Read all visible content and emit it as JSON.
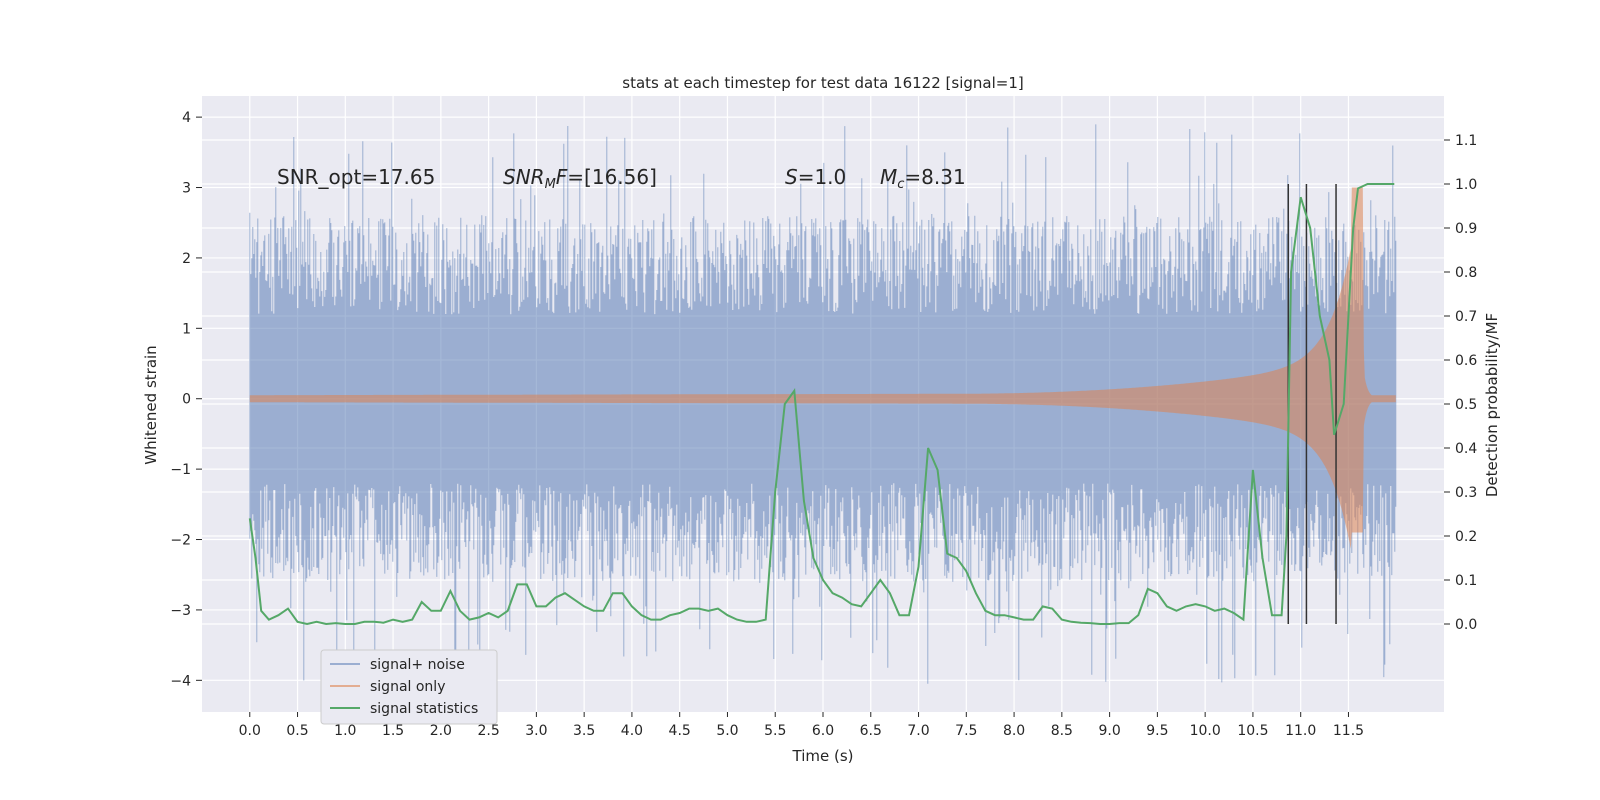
{
  "chart_data": {
    "type": "line",
    "title": "stats at each timestep for test data 16122 [signal=1]",
    "xlabel": "Time (s)",
    "ylabel_left": "Whitened strain",
    "ylabel_right": "Detection probability/MF",
    "xlim": [
      -0.5,
      12.5
    ],
    "ylim_left": [
      -4.45,
      4.3
    ],
    "ylim_right": [
      -0.2,
      1.2
    ],
    "xticks": [
      "0.0",
      "0.5",
      "1.0",
      "1.5",
      "2.0",
      "2.5",
      "3.0",
      "3.5",
      "4.0",
      "4.5",
      "5.0",
      "5.5",
      "6.0",
      "6.5",
      "7.0",
      "7.5",
      "8.0",
      "8.5",
      "9.0",
      "9.5",
      "10.0",
      "10.5",
      "11.0",
      "11.5"
    ],
    "yticks_left": [
      "-4",
      "-3",
      "-2",
      "-1",
      "0",
      "1",
      "2",
      "3",
      "4"
    ],
    "yticks_right": [
      "0.0",
      "0.1",
      "0.2",
      "0.3",
      "0.4",
      "0.5",
      "0.6",
      "0.7",
      "0.8",
      "0.9",
      "1.0",
      "1.1"
    ],
    "grid": true,
    "legend_position": "lower-left",
    "annotations": {
      "snr_opt": "SNR_opt=17.65",
      "snr_mf": "SNR_MF=[16.56]",
      "s": "S=1.0",
      "mc": "M_c=8.31"
    },
    "series": [
      {
        "name": "signal+ noise",
        "color": "#4c72b0",
        "axis": "left",
        "x_range": [
          0.0,
          12.0
        ],
        "envelope_min": -2.6,
        "envelope_max": 2.6,
        "peak_max": 3.9,
        "peak_min": -4.1
      },
      {
        "name": "signal only",
        "color": "#dd8452",
        "axis": "left",
        "x_range": [
          0.0,
          12.0
        ],
        "chirp_start": 7.3,
        "merger_time": 11.65,
        "peak_amplitude": 3.0
      },
      {
        "name": "signal statistics",
        "color": "#55a868",
        "axis": "right",
        "x": [
          0.0,
          0.06,
          0.12,
          0.2,
          0.3,
          0.4,
          0.5,
          0.6,
          0.7,
          0.8,
          0.9,
          1.0,
          1.1,
          1.2,
          1.3,
          1.4,
          1.5,
          1.6,
          1.7,
          1.8,
          1.9,
          2.0,
          2.1,
          2.2,
          2.3,
          2.4,
          2.5,
          2.6,
          2.7,
          2.8,
          2.9,
          3.0,
          3.1,
          3.2,
          3.3,
          3.4,
          3.5,
          3.6,
          3.7,
          3.8,
          3.9,
          4.0,
          4.1,
          4.2,
          4.3,
          4.4,
          4.5,
          4.6,
          4.7,
          4.8,
          4.9,
          5.0,
          5.1,
          5.2,
          5.3,
          5.4,
          5.5,
          5.6,
          5.7,
          5.8,
          5.9,
          6.0,
          6.1,
          6.2,
          6.3,
          6.4,
          6.5,
          6.6,
          6.7,
          6.8,
          6.9,
          7.0,
          7.1,
          7.2,
          7.3,
          7.4,
          7.5,
          7.6,
          7.7,
          7.8,
          7.9,
          8.0,
          8.1,
          8.2,
          8.3,
          8.4,
          8.5,
          8.6,
          8.7,
          8.8,
          8.9,
          9.0,
          9.1,
          9.2,
          9.3,
          9.4,
          9.5,
          9.6,
          9.7,
          9.8,
          9.9,
          10.0,
          10.1,
          10.2,
          10.3,
          10.4,
          10.5,
          10.6,
          10.7,
          10.8,
          10.85,
          10.9,
          11.0,
          11.1,
          11.2,
          11.3,
          11.35,
          11.45,
          11.55,
          11.6,
          11.7,
          11.8,
          11.9,
          11.98
        ],
        "y": [
          0.24,
          0.15,
          0.03,
          0.01,
          0.02,
          0.035,
          0.005,
          0.0,
          0.005,
          0.0,
          0.002,
          0.0,
          0.0,
          0.005,
          0.005,
          0.003,
          0.01,
          0.005,
          0.01,
          0.05,
          0.03,
          0.03,
          0.075,
          0.03,
          0.01,
          0.015,
          0.025,
          0.015,
          0.03,
          0.09,
          0.09,
          0.04,
          0.04,
          0.06,
          0.07,
          0.055,
          0.04,
          0.03,
          0.03,
          0.07,
          0.07,
          0.04,
          0.02,
          0.01,
          0.01,
          0.02,
          0.025,
          0.035,
          0.035,
          0.03,
          0.035,
          0.02,
          0.01,
          0.005,
          0.005,
          0.01,
          0.3,
          0.5,
          0.53,
          0.28,
          0.15,
          0.1,
          0.07,
          0.06,
          0.045,
          0.04,
          0.07,
          0.1,
          0.07,
          0.02,
          0.02,
          0.13,
          0.4,
          0.35,
          0.16,
          0.15,
          0.12,
          0.07,
          0.03,
          0.02,
          0.02,
          0.015,
          0.01,
          0.01,
          0.04,
          0.035,
          0.01,
          0.005,
          0.003,
          0.002,
          0.0,
          0.0,
          0.002,
          0.002,
          0.02,
          0.08,
          0.07,
          0.04,
          0.03,
          0.04,
          0.045,
          0.04,
          0.03,
          0.035,
          0.025,
          0.01,
          0.35,
          0.15,
          0.02,
          0.02,
          0.2,
          0.8,
          0.97,
          0.9,
          0.7,
          0.6,
          0.43,
          0.5,
          0.9,
          0.99,
          1.0,
          1.0,
          1.0,
          1.0
        ]
      }
    ],
    "vertical_lines": [
      10.87,
      11.06,
      11.37
    ]
  }
}
